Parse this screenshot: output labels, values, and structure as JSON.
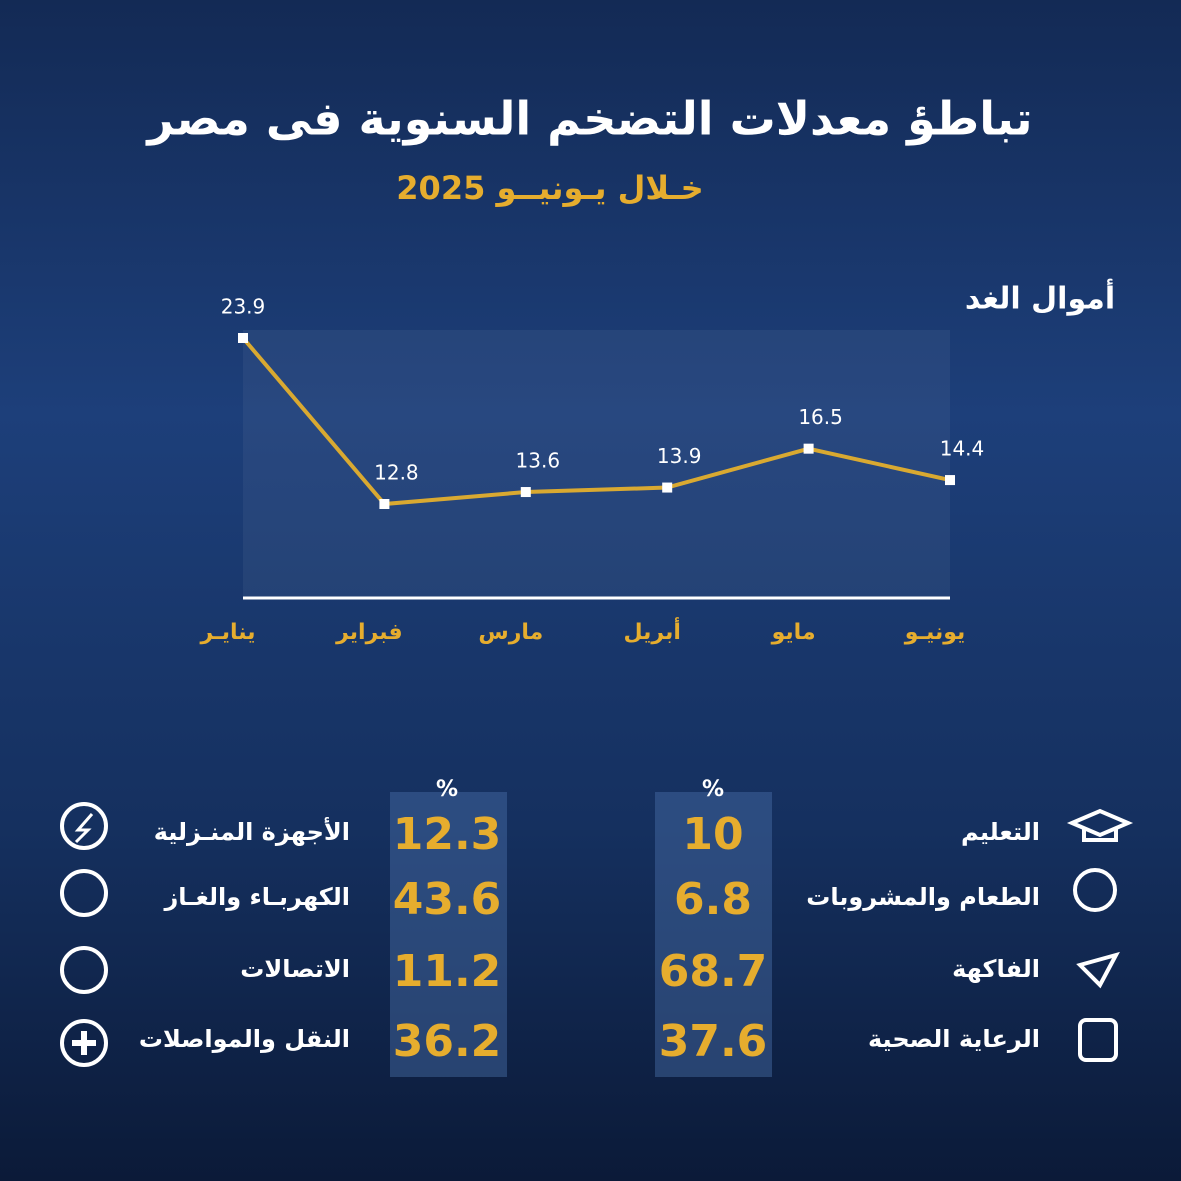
{
  "chart_data": {
    "type": "line",
    "title": "تباطؤ معدلات التضخم السنوية فى مصر",
    "subtitle": "خـلال يـونيــو 2025",
    "categories": [
      "ينايـر",
      "فبراير",
      "مارس",
      "أبريل",
      "مايو",
      "يونيـو"
    ],
    "values": [
      23.9,
      12.8,
      13.6,
      13.9,
      16.5,
      14.4
    ],
    "color": "#d9a931"
  },
  "brand": "أموال الغد",
  "table": {
    "groups": [
      {
        "unit": "%",
        "rows": [
          {
            "label": "التعليم",
            "value": 10
          },
          {
            "label": "الطعام والمشروبات",
            "value": 6.8
          },
          {
            "label": "الفاكهة",
            "value": 68.7
          },
          {
            "label": "الرعاية الصحية",
            "value": 37.6
          }
        ]
      },
      {
        "unit": "%",
        "rows": [
          {
            "label": "الأجهزة المنـزلية",
            "value": 12.3
          },
          {
            "label": "الكهربـاء والغـاز",
            "value": 43.6
          },
          {
            "label": "الاتصالات",
            "value": 11.2
          },
          {
            "label": "النقل والمواصلات",
            "value": 36.2
          }
        ]
      }
    ]
  }
}
